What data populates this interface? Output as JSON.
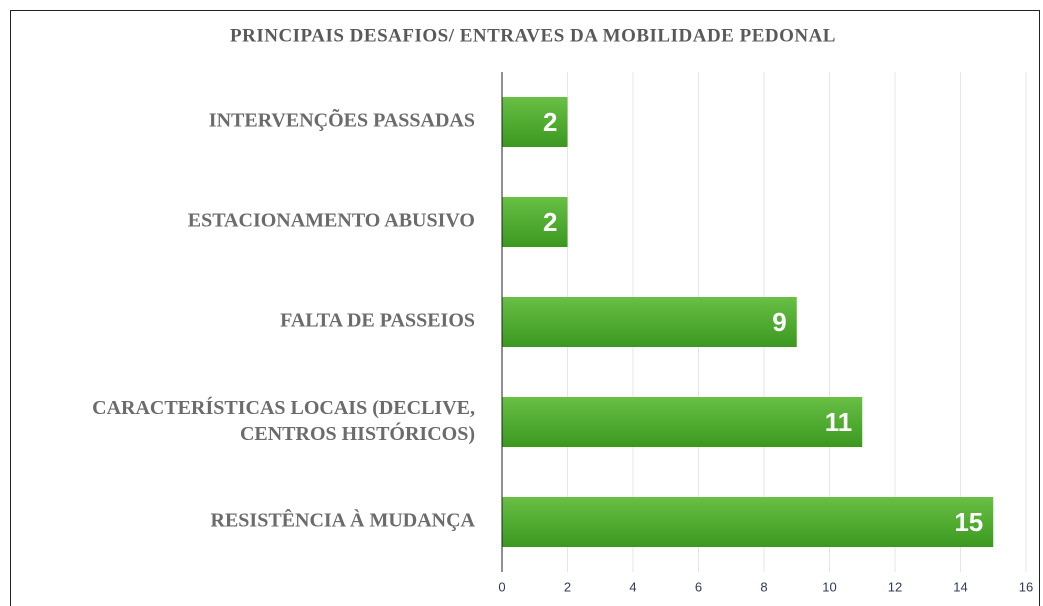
{
  "chart_data": {
    "type": "hbar",
    "title": "PRINCIPAIS DESAFIOS/ ENTRAVES DA MOBILIDADE PEDONAL",
    "categories": [
      "INTERVENÇÕES PASSADAS",
      "ESTACIONAMENTO ABUSIVO",
      "FALTA DE PASSEIOS",
      "CARACTERÍSTICAS LOCAIS (DECLIVE, CENTROS HISTÓRICOS)",
      "RESISTÊNCIA À MUDANÇA"
    ],
    "values": [
      2,
      2,
      9,
      11,
      15
    ],
    "color": "#4ea62c",
    "xlim": [
      0,
      16
    ],
    "xticks": [
      0,
      2,
      4,
      6,
      8,
      10,
      12,
      14,
      16
    ],
    "grid": true
  }
}
